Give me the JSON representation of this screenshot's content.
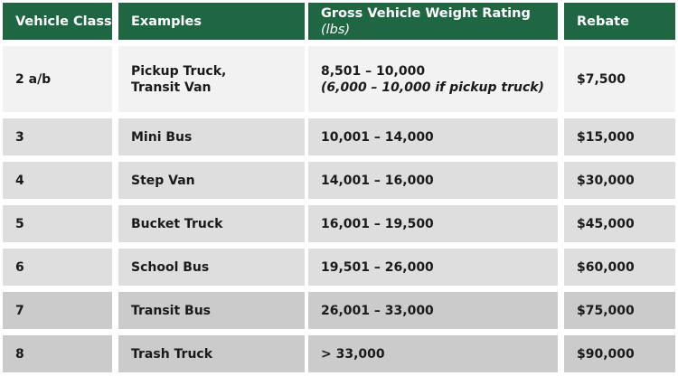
{
  "header": {
    "vehicle_class": "Vehicle Class",
    "examples": "Examples",
    "gvwr": "Gross Vehicle Weight Rating",
    "gvwr_unit": "(lbs)",
    "rebate": "Rebate"
  },
  "rows": [
    {
      "vehicle_class": "2 a/b",
      "example_line1": "Pickup Truck,",
      "example_line2": "Transit Van",
      "gvwr": "8,501 – 10,000",
      "gvwr_note": "(6,000 – 10,000 if pickup truck)",
      "rebate": "$7,500"
    },
    {
      "vehicle_class": "3",
      "example": "Mini Bus",
      "gvwr": "10,001 – 14,000",
      "rebate": "$15,000"
    },
    {
      "vehicle_class": "4",
      "example": "Step Van",
      "gvwr": "14,001 – 16,000",
      "rebate": "$30,000"
    },
    {
      "vehicle_class": "5",
      "example": "Bucket Truck",
      "gvwr": "16,001 – 19,500",
      "rebate": "$45,000"
    },
    {
      "vehicle_class": "6",
      "example": "School Bus",
      "gvwr": "19,501 – 26,000",
      "rebate": "$60,000"
    },
    {
      "vehicle_class": "7",
      "example": "Transit Bus",
      "gvwr": "26,001 – 33,000",
      "rebate": "$75,000"
    },
    {
      "vehicle_class": "8",
      "example": "Trash Truck",
      "gvwr": "> 33,000",
      "rebate": "$90,000"
    }
  ],
  "colors": {
    "header_bg": "#1f6643",
    "row_light": "#f2f2f2",
    "row_mid": "#dedede",
    "row_dark": "#cbcbcb"
  }
}
